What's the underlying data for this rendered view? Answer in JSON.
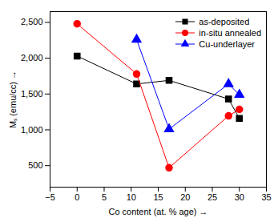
{
  "chart_data": {
    "type": "line",
    "xlabel": "Co content (at. % age)",
    "ylabel": "Mₛ (emu/cc)",
    "xlim": [
      -5,
      35
    ],
    "xticks": [
      -5,
      0,
      5,
      10,
      15,
      20,
      25,
      30,
      35
    ],
    "ylim": [
      200,
      2650
    ],
    "yticks": [
      500,
      1000,
      1500,
      2000,
      2500
    ],
    "grid": false,
    "legend": "top-right",
    "series": [
      {
        "name": "as-deposited",
        "color": "#000000",
        "marker": "square",
        "x": [
          0,
          11,
          17,
          28,
          30
        ],
        "values": [
          2030,
          1640,
          1690,
          1430,
          1160
        ]
      },
      {
        "name": "in-situ annealed",
        "color": "#ff0000",
        "marker": "circle",
        "x": [
          0,
          11,
          17,
          28,
          30
        ],
        "values": [
          2480,
          1780,
          470,
          1195,
          1285
        ]
      },
      {
        "name": "Cu-underlayer",
        "color": "#0000ff",
        "marker": "triangle",
        "x": [
          11,
          17,
          28,
          30
        ],
        "values": [
          2260,
          1010,
          1640,
          1490
        ]
      }
    ]
  }
}
